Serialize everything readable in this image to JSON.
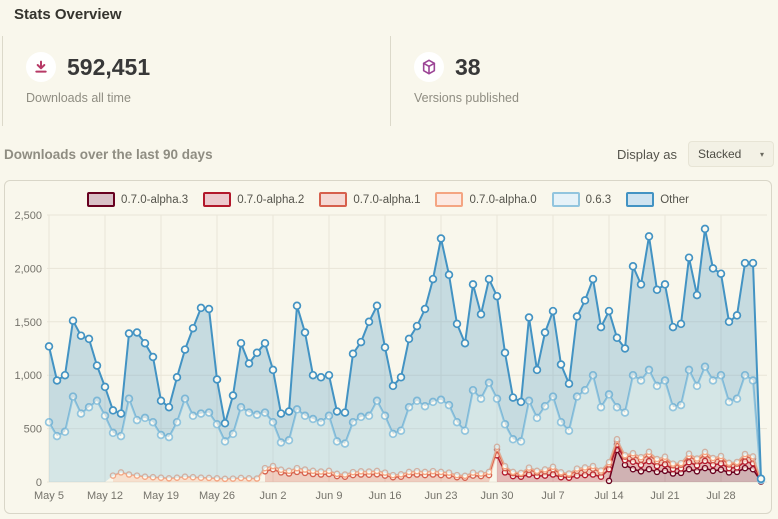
{
  "page_title": "Stats Overview",
  "stats": {
    "downloads": {
      "value": "592,451",
      "label": "Downloads all time",
      "icon": "download-icon",
      "icon_color": "#b73a67"
    },
    "versions": {
      "value": "38",
      "label": "Versions published",
      "icon": "package-icon",
      "icon_color": "#9c4596"
    }
  },
  "section": {
    "title": "Downloads over the last 90 days",
    "display_as_label": "Display as",
    "display_as_value": "Stacked",
    "caret": "▾"
  },
  "chart_data": {
    "type": "area",
    "stacked": true,
    "legend_position": "top",
    "grid": true,
    "grid_color": "#e9e5d8",
    "ylim": [
      0,
      2500
    ],
    "y_tick_values": [
      0,
      500,
      1000,
      1500,
      2000,
      2500
    ],
    "y_tick_labels": [
      "0",
      "500",
      "1,000",
      "1,500",
      "2,000",
      "2,500"
    ],
    "x_tick_indices": [
      0,
      7,
      14,
      21,
      28,
      35,
      42,
      49,
      56,
      63,
      70,
      77,
      84
    ],
    "x_tick_labels": [
      "May 5",
      "May 12",
      "May 19",
      "May 26",
      "Jun 2",
      "Jun 9",
      "Jun 16",
      "Jun 23",
      "Jun 30",
      "Jul 7",
      "Jul 14",
      "Jul 21",
      "Jul 28"
    ],
    "series": [
      {
        "name": "0.7.0-alpha.3",
        "color": "#67001f",
        "fill": "rgba(103,0,31,0.28)",
        "swatch_fill": "#d9c1c7",
        "lw": 1.6,
        "r": 2.6,
        "values": [
          null,
          null,
          null,
          null,
          null,
          null,
          null,
          null,
          null,
          null,
          null,
          null,
          null,
          null,
          null,
          null,
          null,
          null,
          null,
          null,
          null,
          null,
          null,
          null,
          null,
          null,
          null,
          null,
          null,
          null,
          null,
          null,
          null,
          null,
          null,
          null,
          null,
          null,
          null,
          null,
          null,
          null,
          null,
          null,
          null,
          null,
          null,
          null,
          null,
          null,
          null,
          null,
          null,
          null,
          null,
          null,
          null,
          null,
          null,
          null,
          null,
          null,
          null,
          null,
          null,
          null,
          null,
          null,
          null,
          null,
          10,
          300,
          160,
          120,
          100,
          120,
          95,
          105,
          80,
          85,
          120,
          100,
          130,
          105,
          115,
          90,
          95,
          130,
          120,
          5
        ]
      },
      {
        "name": "0.7.0-alpha.2",
        "color": "#b2182b",
        "fill": "rgba(178,24,43,0.28)",
        "swatch_fill": "#ecc9cd",
        "lw": 1.6,
        "r": 2.6,
        "values": [
          null,
          null,
          null,
          null,
          null,
          null,
          null,
          null,
          null,
          null,
          null,
          null,
          null,
          null,
          null,
          null,
          null,
          null,
          null,
          null,
          null,
          null,
          null,
          null,
          null,
          null,
          null,
          null,
          null,
          null,
          null,
          null,
          null,
          null,
          null,
          null,
          null,
          null,
          null,
          null,
          null,
          null,
          null,
          null,
          null,
          null,
          null,
          null,
          null,
          null,
          null,
          null,
          null,
          null,
          null,
          null,
          250,
          90,
          55,
          50,
          70,
          55,
          60,
          70,
          45,
          40,
          60,
          65,
          70,
          50,
          110,
          50,
          45,
          70,
          60,
          75,
          55,
          60,
          42,
          42,
          65,
          55,
          68,
          55,
          58,
          40,
          42,
          60,
          55,
          5
        ]
      },
      {
        "name": "0.7.0-alpha.1",
        "color": "#d6604d",
        "fill": "rgba(214,96,77,0.28)",
        "swatch_fill": "#f5d9d4",
        "lw": 1.6,
        "r": 2.6,
        "values": [
          null,
          null,
          null,
          null,
          null,
          null,
          null,
          null,
          null,
          null,
          null,
          null,
          null,
          null,
          null,
          null,
          null,
          null,
          null,
          null,
          null,
          null,
          null,
          null,
          null,
          null,
          null,
          100,
          120,
          90,
          80,
          95,
          85,
          75,
          70,
          75,
          55,
          50,
          65,
          70,
          68,
          72,
          60,
          45,
          50,
          65,
          70,
          65,
          70,
          65,
          60,
          45,
          40,
          60,
          55,
          65,
          55,
          40,
          28,
          25,
          45,
          35,
          40,
          50,
          32,
          28,
          45,
          50,
          55,
          40,
          45,
          35,
          32,
          55,
          50,
          60,
          45,
          50,
          35,
          35,
          55,
          45,
          58,
          45,
          48,
          35,
          35,
          50,
          45,
          5
        ]
      },
      {
        "name": "0.7.0-alpha.0",
        "color": "#f4a582",
        "fill": "rgba(244,165,130,0.28)",
        "swatch_fill": "#fce9e2",
        "lw": 1.6,
        "r": 2.6,
        "values": [
          null,
          null,
          null,
          null,
          null,
          null,
          null,
          null,
          60,
          90,
          70,
          60,
          50,
          45,
          40,
          35,
          40,
          50,
          45,
          40,
          38,
          35,
          30,
          32,
          38,
          35,
          33,
          30,
          30,
          25,
          25,
          35,
          32,
          30,
          28,
          30,
          22,
          20,
          28,
          30,
          30,
          32,
          28,
          20,
          22,
          30,
          32,
          30,
          32,
          30,
          28,
          20,
          18,
          28,
          25,
          30,
          25,
          18,
          12,
          10,
          20,
          15,
          18,
          22,
          14,
          12,
          20,
          22,
          25,
          18,
          20,
          16,
          14,
          25,
          22,
          28,
          20,
          22,
          15,
          15,
          25,
          20,
          26,
          20,
          22,
          15,
          15,
          22,
          20,
          2
        ]
      },
      {
        "name": "0.6.3",
        "color": "#92c5de",
        "fill": "rgba(146,197,222,0.35)",
        "swatch_fill": "#e6f2f8",
        "lw": 2,
        "r": 3.4,
        "values": [
          560,
          430,
          470,
          800,
          640,
          700,
          760,
          620,
          400,
          340,
          710,
          520,
          550,
          515,
          400,
          385,
          520,
          730,
          575,
          600,
          612,
          505,
          350,
          418,
          662,
          615,
          597,
          520,
          410,
          255,
          285,
          550,
          503,
          485,
          462,
          515,
          303,
          290,
          467,
          510,
          522,
          656,
          532,
          385,
          408,
          605,
          658,
          615,
          648,
          675,
          632,
          495,
          422,
          772,
          700,
          835,
          450,
          392,
          305,
          295,
          625,
          495,
          592,
          658,
          469,
          400,
          675,
          723,
          850,
          592,
          635,
          299,
          399,
          730,
          718,
          767,
          685,
          713,
          528,
          543,
          785,
          680,
          798,
          725,
          757,
          570,
          593,
          738,
          710,
          3
        ]
      },
      {
        "name": "Other",
        "color": "#4393c3",
        "fill": "rgba(67,147,195,0.28)",
        "swatch_fill": "#cfe3f0",
        "lw": 2,
        "r": 3.4,
        "values": [
          710,
          520,
          530,
          710,
          730,
          640,
          330,
          270,
          210,
          210,
          610,
          820,
          700,
          610,
          320,
          280,
          420,
          460,
          820,
          990,
          970,
          420,
          170,
          360,
          600,
          460,
          580,
          650,
          490,
          270,
          270,
          970,
          780,
          410,
          420,
          380,
          280,
          290,
          640,
          700,
          880,
          890,
          640,
          450,
          500,
          640,
          700,
          910,
          1150,
          1510,
          1220,
          920,
          820,
          990,
          790,
          970,
          960,
          670,
          390,
          370,
          780,
          450,
          690,
          800,
          540,
          440,
          750,
          840,
          900,
          750,
          780,
          650,
          600,
          1020,
          900,
          1250,
          900,
          900,
          750,
          760,
          1050,
          850,
          1290,
          1050,
          950,
          750,
          780,
          1050,
          1100,
          10
        ]
      }
    ]
  }
}
